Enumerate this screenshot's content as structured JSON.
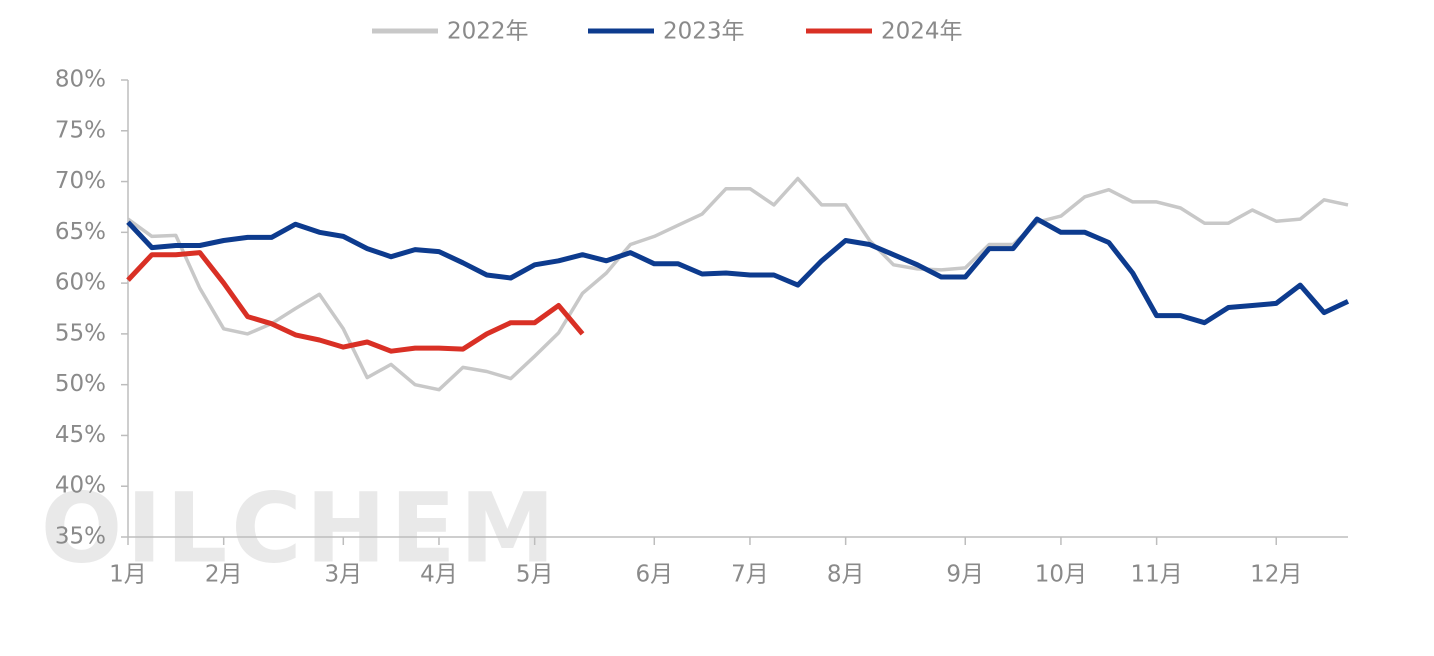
{
  "chart_data": {
    "type": "line",
    "watermark": "OILCHEM",
    "categories": [
      "1月",
      null,
      null,
      null,
      "2月",
      null,
      null,
      null,
      null,
      "3月",
      null,
      null,
      null,
      "4月",
      null,
      null,
      null,
      "5月",
      null,
      null,
      null,
      null,
      "6月",
      null,
      null,
      null,
      "7月",
      null,
      null,
      null,
      "8月",
      null,
      null,
      null,
      null,
      "9月",
      null,
      null,
      null,
      "10月",
      null,
      null,
      null,
      "11月",
      null,
      null,
      null,
      null,
      "12月",
      null,
      null,
      null
    ],
    "series": [
      {
        "name": "2022年",
        "color": "#c8c8c8",
        "values": [
          66.3,
          64.6,
          64.7,
          59.5,
          55.5,
          55,
          56,
          57.5,
          58.9,
          55.5,
          50.7,
          52,
          50,
          49.5,
          51.7,
          51.3,
          50.6,
          52.8,
          55.1,
          59,
          61,
          63.8,
          64.6,
          65.7,
          66.8,
          69.3,
          69.3,
          67.7,
          70.3,
          67.7,
          67.7,
          64.2,
          61.8,
          61.4,
          61.3,
          61.5,
          63.8,
          63.8,
          66,
          66.6,
          68.5,
          69.2,
          68,
          68,
          67.4,
          65.9,
          65.9,
          67.2,
          66.1,
          66.3,
          68.2,
          67.7
        ]
      },
      {
        "name": "2023年",
        "color": "#0d3b8e",
        "values": [
          66,
          63.5,
          63.7,
          63.7,
          64.2,
          64.5,
          64.5,
          65.8,
          65,
          64.6,
          63.4,
          62.6,
          63.3,
          63.1,
          62,
          60.8,
          60.5,
          61.8,
          62.2,
          62.8,
          62.2,
          63,
          61.9,
          61.9,
          60.9,
          61,
          60.8,
          60.8,
          59.8,
          62.2,
          64.2,
          63.8,
          62.8,
          61.8,
          60.6,
          60.6,
          63.4,
          63.4,
          66.3,
          65,
          65,
          64,
          61,
          56.8,
          56.8,
          56.1,
          57.6,
          57.8,
          58,
          59.8,
          57.1,
          58.2
        ]
      },
      {
        "name": "2024年",
        "color": "#d93025",
        "values": [
          60.3,
          62.8,
          62.8,
          63,
          60,
          56.7,
          56,
          54.9,
          54.4,
          53.7,
          54.2,
          53.3,
          53.6,
          53.6,
          53.5,
          55,
          56.1,
          56.1,
          57.8,
          55,
          null,
          null,
          null,
          null,
          null,
          null,
          null,
          null,
          null,
          null,
          null,
          null,
          null,
          null,
          null,
          null,
          null,
          null,
          null,
          null,
          null,
          null,
          null,
          null,
          null,
          null,
          null,
          null,
          null,
          null,
          null,
          null
        ]
      }
    ],
    "ylim": [
      35,
      80
    ],
    "yticks": [
      {
        "value": 35,
        "label": "35%"
      },
      {
        "value": 40,
        "label": "40%"
      },
      {
        "value": 45,
        "label": "45%"
      },
      {
        "value": 50,
        "label": "50%"
      },
      {
        "value": 55,
        "label": "55%"
      },
      {
        "value": 60,
        "label": "60%"
      },
      {
        "value": 65,
        "label": "65%"
      },
      {
        "value": 70,
        "label": "70%"
      },
      {
        "value": 75,
        "label": "75%"
      },
      {
        "value": 80,
        "label": "80%"
      }
    ],
    "grid": false,
    "legend": "top"
  }
}
